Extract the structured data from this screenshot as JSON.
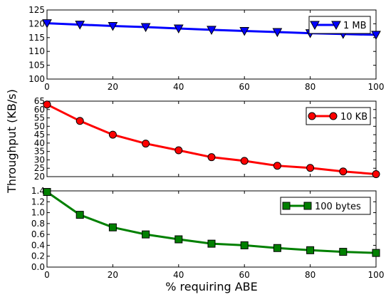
{
  "figure": {
    "ylabel": "Throughput (KB/s)",
    "xlabel": "% requiring ABE"
  },
  "chart_data": [
    {
      "type": "line",
      "x": [
        0,
        10,
        20,
        30,
        40,
        50,
        60,
        70,
        80,
        90,
        100
      ],
      "xlim": [
        0,
        100
      ],
      "xticks": [
        "0",
        "20",
        "40",
        "60",
        "80",
        "100"
      ],
      "ylim": [
        100,
        125
      ],
      "yticks": [
        "100",
        "105",
        "110",
        "115",
        "120",
        "125"
      ],
      "legend_position": "top-right",
      "series": [
        {
          "name": "1 MB",
          "color": "#0000ff",
          "marker": "triangle-down",
          "values": [
            120.2,
            119.7,
            119.2,
            118.8,
            118.3,
            117.8,
            117.4,
            117.0,
            116.6,
            116.3,
            116.0
          ]
        }
      ]
    },
    {
      "type": "line",
      "x": [
        0,
        10,
        20,
        30,
        40,
        50,
        60,
        70,
        80,
        90,
        100
      ],
      "xlim": [
        0,
        100
      ],
      "ylim": [
        20,
        65
      ],
      "yticks": [
        "20",
        "25",
        "30",
        "35",
        "40",
        "45",
        "50",
        "55",
        "60",
        "65"
      ],
      "legend_position": "top-right",
      "series": [
        {
          "name": "10 KB",
          "color": "#ff0000",
          "marker": "circle",
          "values": [
            63.0,
            53.2,
            45.0,
            39.7,
            35.7,
            31.6,
            29.4,
            26.5,
            25.2,
            23.1,
            21.5
          ]
        }
      ]
    },
    {
      "type": "line",
      "x": [
        0,
        10,
        20,
        30,
        40,
        50,
        60,
        70,
        80,
        90,
        100
      ],
      "xlim": [
        0,
        100
      ],
      "ylim": [
        0.0,
        1.4
      ],
      "yticks": [
        "0.0",
        "0.2",
        "0.4",
        "0.6",
        "0.8",
        "1.0",
        "1.2",
        "1.4"
      ],
      "legend_position": "top-right",
      "series": [
        {
          "name": "100 bytes",
          "color": "#008000",
          "marker": "square",
          "values": [
            1.38,
            0.96,
            0.73,
            0.6,
            0.51,
            0.43,
            0.4,
            0.35,
            0.31,
            0.28,
            0.26
          ]
        }
      ]
    }
  ]
}
